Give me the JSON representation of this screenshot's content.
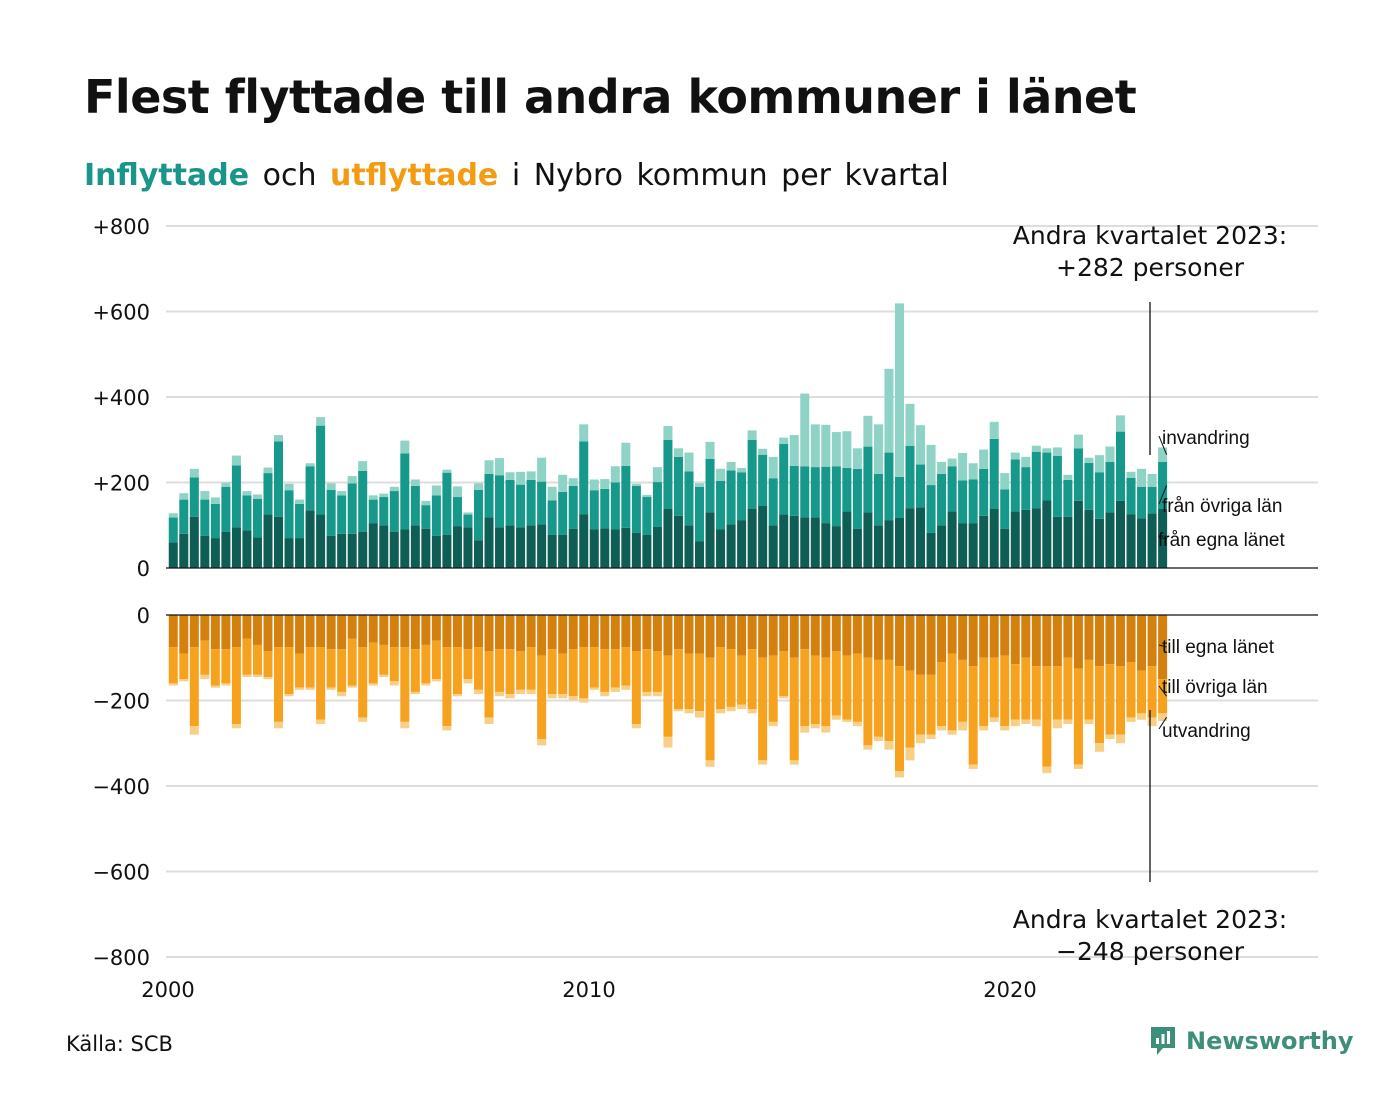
{
  "header": {
    "title": "Flest flyttade till andra kommuner i länet",
    "subtitle_in": "Inflyttade",
    "subtitle_and": "och",
    "subtitle_out": "utflyttade",
    "subtitle_rest": "i Nybro kommun per kvartal"
  },
  "footer": {
    "source": "Källa: SCB",
    "brand": "Newsworthy"
  },
  "colors": {
    "in_own_county": "#0e5e55",
    "in_other_counties": "#16988a",
    "in_immigration": "#8fd3c7",
    "out_own_county": "#d4800e",
    "out_other_counties": "#f7a21e",
    "out_emigration": "#f8cf86",
    "grid": "#dddddd",
    "axis": "#111111",
    "brand": "#3d8f7a"
  },
  "chart_data": {
    "type": "bar",
    "stacked": true,
    "title": "Flest flyttade till andra kommuner i länet",
    "subtitle": "Inflyttade och utflyttade i Nybro kommun per kvartal",
    "x_start": "2000 Q1",
    "x_end": "2023 Q2",
    "x_ticks": [
      "2000",
      "2010",
      "2020"
    ],
    "top_panel": {
      "ylim": [
        0,
        800
      ],
      "y_ticks": [
        "+800",
        "+600",
        "+400",
        "+200",
        "0"
      ],
      "series": [
        {
          "name": "från egna länet",
          "values": [
            60,
            80,
            120,
            75,
            70,
            85,
            95,
            88,
            72,
            125,
            120,
            70,
            70,
            135,
            125,
            75,
            80,
            80,
            85,
            105,
            100,
            85,
            90,
            100,
            92,
            75,
            78,
            98,
            95,
            65,
            118,
            95,
            100,
            95,
            100,
            102,
            78,
            78,
            92,
            126,
            90,
            93,
            90,
            94,
            82,
            78,
            96,
            138,
            122,
            100,
            62,
            130,
            90,
            102,
            112,
            138,
            145,
            100,
            125,
            122,
            118,
            118,
            105,
            98,
            132,
            92,
            130,
            100,
            112,
            117,
            140,
            142,
            82,
            100,
            132,
            105,
            105,
            122,
            138,
            92,
            132,
            136,
            140,
            158,
            120,
            120,
            157,
            136,
            115,
            130,
            157,
            126,
            116,
            128,
            138
          ]
        },
        {
          "name": "från övriga län",
          "values": [
            58,
            80,
            92,
            85,
            80,
            105,
            145,
            82,
            90,
            97,
            176,
            112,
            80,
            103,
            208,
            108,
            90,
            118,
            142,
            55,
            66,
            95,
            178,
            92,
            55,
            95,
            145,
            68,
            30,
            118,
            102,
            122,
            106,
            100,
            106,
            100,
            80,
            100,
            100,
            170,
            92,
            92,
            110,
            145,
            110,
            88,
            105,
            162,
            138,
            126,
            128,
            125,
            114,
            126,
            112,
            162,
            120,
            110,
            165,
            117,
            120,
            118,
            132,
            140,
            102,
            140,
            154,
            120,
            158,
            96,
            146,
            100,
            112,
            120,
            106,
            100,
            102,
            110,
            164,
            92,
            122,
            100,
            132,
            112,
            142,
            86,
            123,
            110,
            109,
            118,
            162,
            85,
            74,
            62,
            110
          ]
        },
        {
          "name": "invandring",
          "values": [
            10,
            15,
            20,
            20,
            15,
            10,
            23,
            10,
            10,
            13,
            15,
            15,
            10,
            7,
            20,
            15,
            10,
            17,
            23,
            10,
            8,
            10,
            30,
            15,
            10,
            23,
            7,
            25,
            5,
            15,
            32,
            40,
            18,
            30,
            20,
            56,
            32,
            40,
            18,
            40,
            25,
            23,
            38,
            54,
            5,
            5,
            35,
            32,
            20,
            44,
            8,
            40,
            28,
            20,
            10,
            22,
            14,
            50,
            15,
            72,
            170,
            100,
            98,
            80,
            86,
            48,
            72,
            116,
            196,
            406,
            98,
            92,
            94,
            28,
            18,
            64,
            38,
            45,
            40,
            38,
            16,
            24,
            14,
            10,
            20,
            12,
            32,
            12,
            40,
            36,
            38,
            14,
            42,
            30,
            34
          ]
        }
      ],
      "total_label": "+282 personer",
      "callout_title": "Andra kvartalet 2023:"
    },
    "bottom_panel": {
      "ylim": [
        -800,
        0
      ],
      "y_ticks": [
        "0",
        "−200",
        "−400",
        "−600",
        "−800"
      ],
      "series": [
        {
          "name": "till egna länet",
          "values": [
            -75,
            -90,
            -75,
            -60,
            -80,
            -80,
            -75,
            -55,
            -70,
            -85,
            -75,
            -75,
            -90,
            -75,
            -75,
            -80,
            -80,
            -55,
            -75,
            -65,
            -70,
            -75,
            -75,
            -80,
            -70,
            -60,
            -75,
            -75,
            -80,
            -75,
            -85,
            -80,
            -80,
            -85,
            -75,
            -95,
            -80,
            -90,
            -80,
            -75,
            -75,
            -80,
            -80,
            -75,
            -85,
            -80,
            -85,
            -95,
            -80,
            -90,
            -90,
            -100,
            -75,
            -80,
            -95,
            -80,
            -100,
            -95,
            -85,
            -100,
            -80,
            -95,
            -100,
            -85,
            -95,
            -90,
            -100,
            -105,
            -105,
            -120,
            -130,
            -140,
            -140,
            -110,
            -90,
            -105,
            -120,
            -100,
            -100,
            -95,
            -115,
            -100,
            -120,
            -120,
            -120,
            -100,
            -125,
            -105,
            -120,
            -115,
            -120,
            -110,
            -130,
            -120,
            -150
          ]
        },
        {
          "name": "till övriga län",
          "values": [
            -85,
            -60,
            -185,
            -80,
            -85,
            -80,
            -180,
            -85,
            -70,
            -60,
            -175,
            -110,
            -80,
            -95,
            -170,
            -90,
            -100,
            -110,
            -165,
            -95,
            -70,
            -80,
            -175,
            -100,
            -90,
            -90,
            -185,
            -110,
            -70,
            -100,
            -155,
            -100,
            -105,
            -90,
            -100,
            -195,
            -105,
            -95,
            -110,
            -120,
            -95,
            -100,
            -90,
            -90,
            -170,
            -100,
            -95,
            -190,
            -140,
            -130,
            -135,
            -240,
            -145,
            -135,
            -115,
            -140,
            -240,
            -155,
            -105,
            -240,
            -180,
            -160,
            -160,
            -150,
            -150,
            -160,
            -205,
            -180,
            -190,
            -245,
            -180,
            -140,
            -140,
            -150,
            -180,
            -145,
            -230,
            -160,
            -140,
            -165,
            -130,
            -145,
            -125,
            -235,
            -125,
            -145,
            -225,
            -140,
            -180,
            -165,
            -160,
            -130,
            -100,
            -120,
            -80
          ]
        },
        {
          "name": "utvandring",
          "values": [
            -5,
            -5,
            -20,
            -10,
            -5,
            -5,
            -10,
            -5,
            -5,
            -5,
            -15,
            -5,
            -5,
            -5,
            -10,
            -5,
            -10,
            -5,
            -10,
            -5,
            -5,
            -10,
            -15,
            -5,
            -5,
            -5,
            -10,
            -5,
            -10,
            -10,
            -15,
            -10,
            -10,
            -10,
            -10,
            -15,
            -10,
            -10,
            -10,
            -10,
            -5,
            -10,
            -10,
            -10,
            -10,
            -10,
            -10,
            -25,
            -5,
            -10,
            -15,
            -15,
            -10,
            -10,
            -10,
            -10,
            -10,
            -10,
            -5,
            -10,
            -15,
            -10,
            -15,
            -10,
            -5,
            -10,
            -10,
            -10,
            -20,
            -15,
            -30,
            -20,
            -10,
            -10,
            -10,
            -20,
            -10,
            -10,
            -10,
            -10,
            -15,
            -10,
            -15,
            -15,
            -20,
            -10,
            -10,
            -10,
            -20,
            -10,
            -20,
            -10,
            -15,
            -20,
            -18
          ]
        }
      ],
      "total_label": "−248 personer",
      "callout_title": "Andra kvartalet 2023:"
    }
  }
}
